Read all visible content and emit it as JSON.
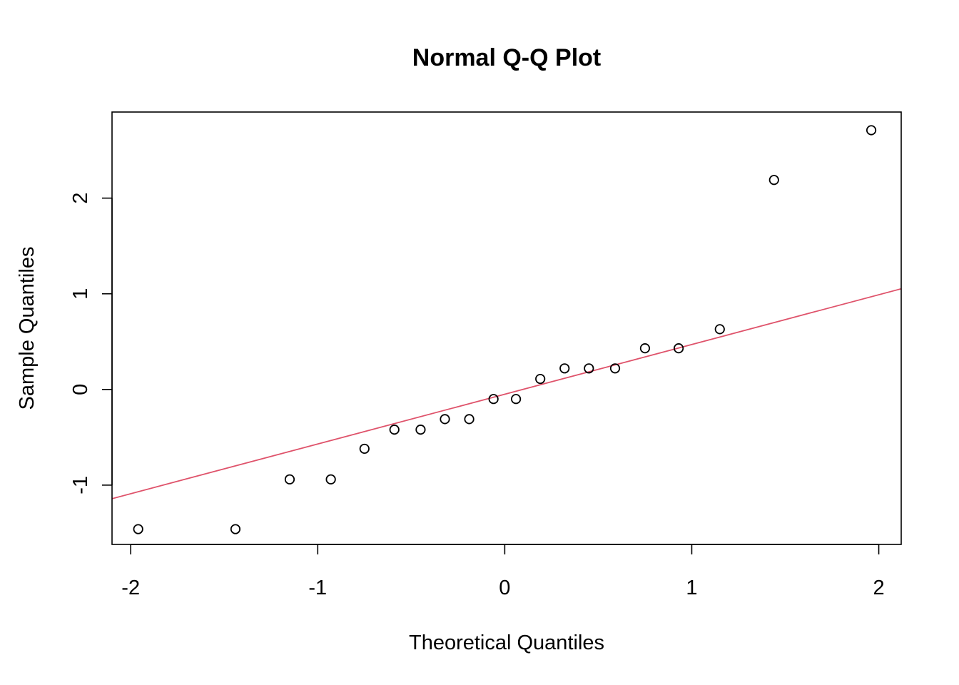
{
  "chart_data": {
    "type": "scatter",
    "title": "Normal Q-Q Plot",
    "xlabel": "Theoretical Quantiles",
    "ylabel": "Sample Quantiles",
    "xlim": [
      -2.1,
      2.12
    ],
    "ylim": [
      -1.62,
      2.9
    ],
    "x_ticks": [
      -2,
      -1,
      0,
      1,
      2
    ],
    "x_tick_labels": [
      "-2",
      "-1",
      "0",
      "1",
      "2"
    ],
    "y_ticks": [
      -1,
      0,
      1,
      2
    ],
    "y_tick_labels": [
      "-1",
      "0",
      "1",
      "2"
    ],
    "grid": false,
    "series": [
      {
        "x": [
          -1.96,
          -1.44,
          -1.15,
          -0.93,
          -0.75,
          -0.59,
          -0.45,
          -0.32,
          -0.19,
          -0.06,
          0.06,
          0.19,
          0.32,
          0.45,
          0.59,
          0.75,
          0.93,
          1.15,
          1.44,
          1.96
        ],
        "y": [
          -1.46,
          -1.46,
          -0.94,
          -0.94,
          -0.62,
          -0.42,
          -0.42,
          -0.31,
          -0.31,
          -0.1,
          -0.1,
          0.11,
          0.22,
          0.22,
          0.22,
          0.43,
          0.43,
          0.63,
          2.19,
          2.71
        ],
        "marker": "open-circle",
        "color": "#000000"
      }
    ],
    "reference_line": {
      "intercept": -0.05,
      "slope": 0.52,
      "color": "#DF536B"
    }
  }
}
